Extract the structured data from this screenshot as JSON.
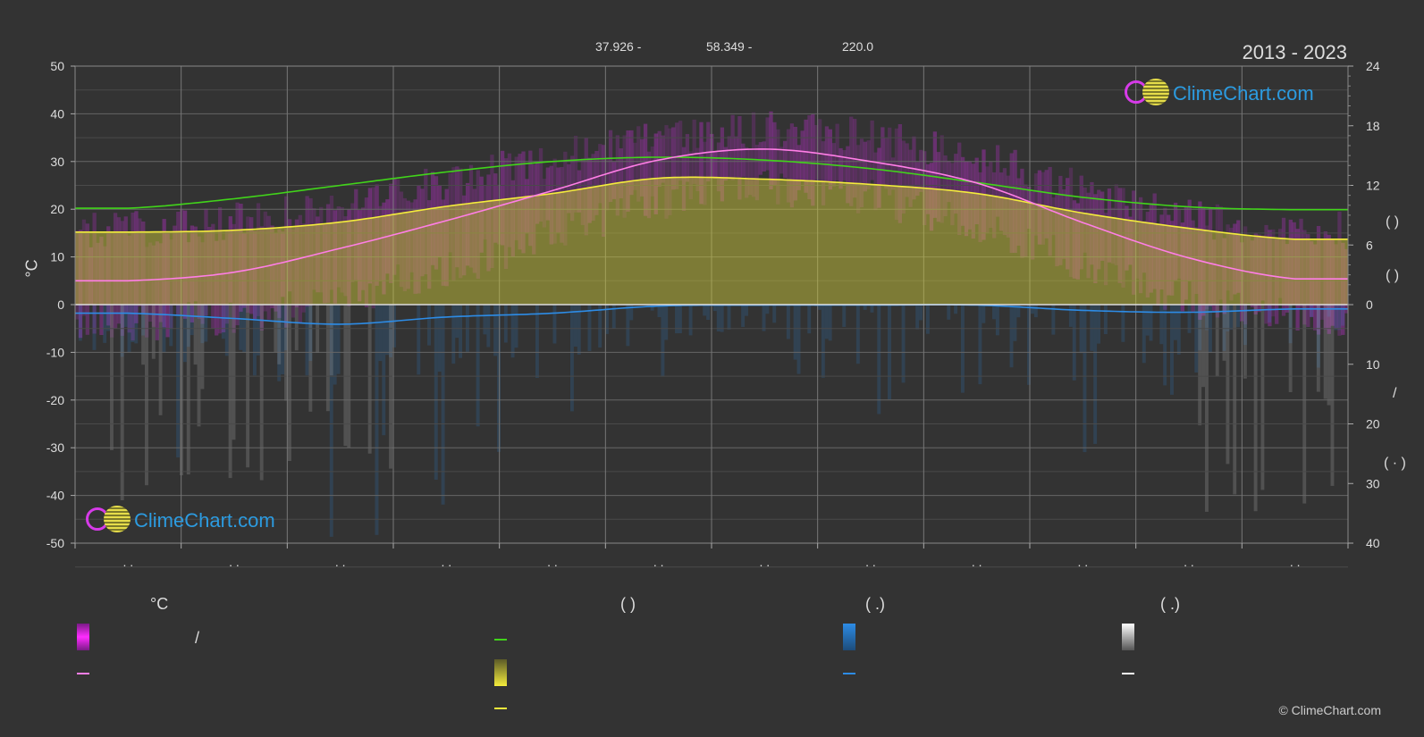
{
  "header": {
    "stat_1": "37.926 -",
    "stat_2": "58.349 -",
    "stat_3": "220.0",
    "period": "2013 - 2023"
  },
  "logo": {
    "text": "ClimeChart.com"
  },
  "copyright": "© ClimeChart.com",
  "colors": {
    "background": "#333333",
    "temp_range": "#c42fd6",
    "mean_temp": "#ff7ee6",
    "daylight": "#41d41a",
    "sunshine": "#d6d23a",
    "sunshine_line": "#f4ec3c",
    "rain": "#2d8ce6",
    "snow": "#ffffff"
  },
  "legend": {
    "col1_header": "°C",
    "col1_slash": "/",
    "col2_header": "(         )",
    "col3_header": "(   .)",
    "col4_header": "(   .)"
  },
  "chart_data": {
    "type": "area",
    "x": [
      1,
      2,
      3,
      4,
      5,
      6,
      7,
      8,
      9,
      10,
      11,
      12
    ],
    "x_tick_labels": [
      ". .",
      ". .",
      ". .",
      ". .",
      ". .",
      ". .",
      ". .",
      ". .",
      ". .",
      ". .",
      ". .",
      ". ."
    ],
    "ylabel_left": "°C",
    "ylim_left": [
      -50,
      50
    ],
    "yticks_left": [
      50,
      40,
      30,
      20,
      10,
      0,
      -10,
      -20,
      -30,
      -40,
      -50
    ],
    "ylim_right_upper": [
      0,
      24
    ],
    "yticks_right_upper": [
      24,
      18,
      12,
      6,
      0
    ],
    "ylim_right_lower": [
      0,
      40
    ],
    "yticks_right_lower": [
      10,
      20,
      30,
      40
    ],
    "right_axis_text": [
      "(   )",
      "(   )",
      "/",
      "(  ·   )"
    ],
    "grid": true,
    "series": [
      {
        "key": "daylight",
        "values": [
          20.2,
          22.2,
          25.0,
          27.8,
          30.0,
          30.9,
          30.3,
          28.5,
          25.6,
          22.5,
          20.5,
          19.9
        ]
      },
      {
        "key": "sunshine",
        "values": [
          15.2,
          15.6,
          17.3,
          20.6,
          23.3,
          26.5,
          26.3,
          25.2,
          23.3,
          19.2,
          16.0,
          13.7
        ]
      },
      {
        "key": "mean_temp",
        "values": [
          5.0,
          6.8,
          11.8,
          17.6,
          23.9,
          30.3,
          32.6,
          30.0,
          25.5,
          17.2,
          9.8,
          5.4
        ]
      },
      {
        "key": "avg_temp_max",
        "values": [
          14.0,
          16.0,
          20.0,
          24.5,
          29.0,
          33.0,
          35.0,
          34.0,
          29.0,
          23.0,
          17.0,
          14.0
        ]
      },
      {
        "key": "avg_temp_min",
        "values": [
          -2.0,
          -1.0,
          3.0,
          9.0,
          16.0,
          23.0,
          26.0,
          24.0,
          18.0,
          10.0,
          3.0,
          -1.0
        ]
      },
      {
        "key": "rain",
        "values": [
          -1.8,
          -2.9,
          -4.1,
          -2.6,
          -1.8,
          -0.3,
          -0.1,
          -0.1,
          -0.1,
          -1.2,
          -1.6,
          -0.9
        ]
      }
    ]
  }
}
